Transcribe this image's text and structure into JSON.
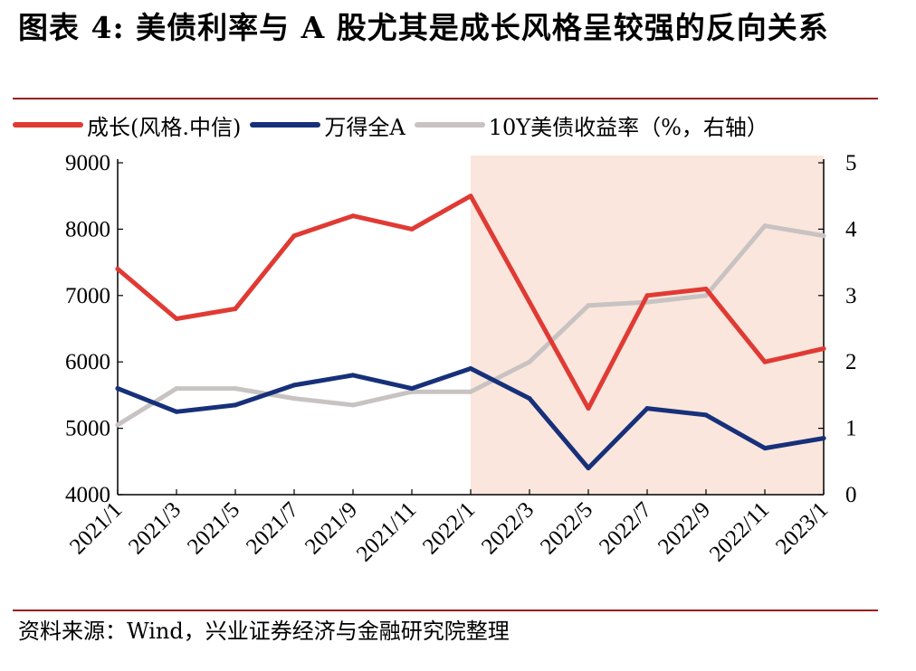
{
  "title": "图表 4:  美债利率与 A 股尤其是成长风格呈较强的反向关系",
  "source": "资料来源：Wind，兴业证券经济与金融研究院整理",
  "colors": {
    "growth": "#e03a34",
    "wind_a": "#17307a",
    "yield": "#c8c3c2",
    "shade": "#fae6dc",
    "rule": "#9c1c1c"
  },
  "chart_data": {
    "type": "line",
    "title": "图表 4:  美债利率与 A 股尤其是成长风格呈较强的反向关系",
    "x": [
      "2021/1",
      "2021/3",
      "2021/5",
      "2021/7",
      "2021/9",
      "2021/11",
      "2022/1",
      "2022/3",
      "2022/5",
      "2022/7",
      "2022/9",
      "2022/11",
      "2023/1"
    ],
    "x_ticks": [
      "2021/1",
      "2021/3",
      "2021/5",
      "2021/7",
      "2021/9",
      "2021/11",
      "2022/1",
      "2022/3",
      "2022/5",
      "2022/7",
      "2022/9",
      "2022/11",
      "2023/1"
    ],
    "y_left": {
      "lim": [
        4000,
        9000
      ],
      "ticks": [
        "9000",
        "8000",
        "7000",
        "6000",
        "5000",
        "4000"
      ]
    },
    "y_right": {
      "lim": [
        0,
        5
      ],
      "ticks": [
        "5",
        "4",
        "3",
        "2",
        "1",
        "0"
      ],
      "label": "%"
    },
    "shaded_region": [
      "2022/1",
      "2023/1"
    ],
    "grid": false,
    "legend_position": "top",
    "series": [
      {
        "name": "成长(风格.中信)",
        "axis": "left",
        "values": [
          7400,
          6650,
          6800,
          7900,
          8200,
          8000,
          8500,
          6900,
          5300,
          7000,
          7100,
          6000,
          6200
        ]
      },
      {
        "name": "万得全A",
        "axis": "left",
        "values": [
          5600,
          5250,
          5350,
          5650,
          5800,
          5600,
          5900,
          5450,
          4400,
          5300,
          5200,
          4700,
          4850
        ]
      },
      {
        "name": "10Y美债收益率（%，右轴）",
        "axis": "right",
        "values": [
          1.05,
          1.6,
          1.6,
          1.45,
          1.35,
          1.55,
          1.55,
          2.0,
          2.85,
          2.9,
          3.0,
          4.05,
          3.9
        ]
      }
    ]
  }
}
